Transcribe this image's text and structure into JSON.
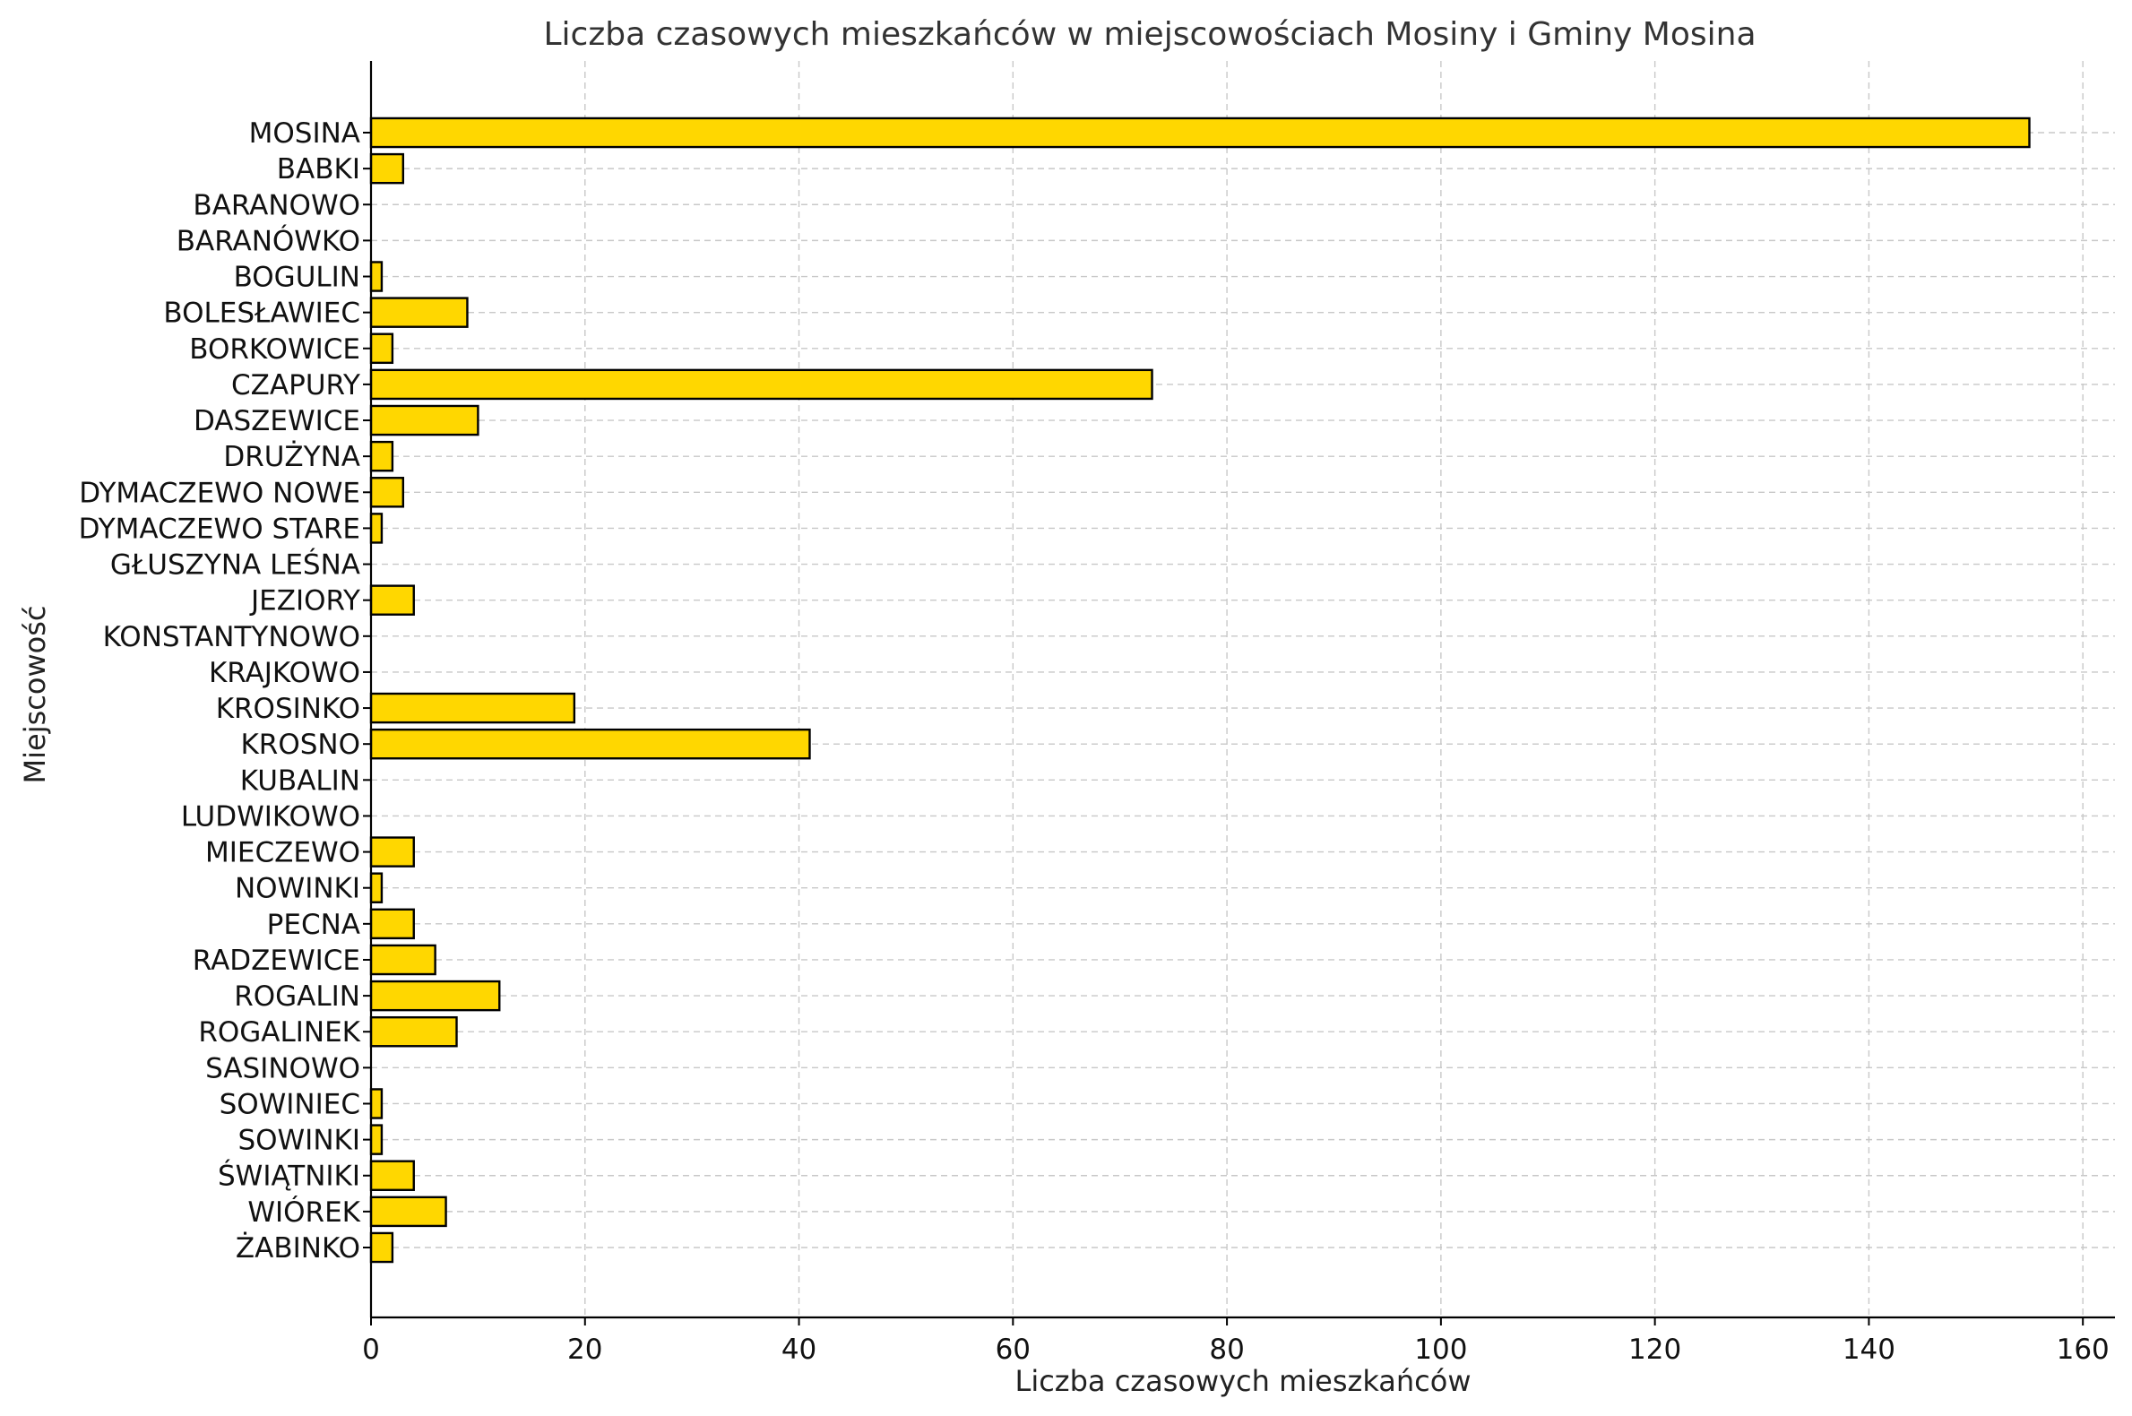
{
  "chart_data": {
    "type": "bar",
    "orientation": "horizontal",
    "title": "Liczba czasowych mieszkańców w miejscowościach Mosiny i Gminy Mosina",
    "xlabel": "Liczba czasowych mieszkańców",
    "ylabel": "Miejscowość",
    "xlim": [
      0,
      163
    ],
    "xticks": [
      0,
      20,
      40,
      60,
      80,
      100,
      120,
      140,
      160
    ],
    "grid": true,
    "bar_color": "#FFD700",
    "bar_edge_color": "#000000",
    "categories": [
      "MOSINA",
      "BABKI",
      "BARANOWO",
      "BARANÓWKO",
      "BOGULIN",
      "BOLESŁAWIEC",
      "BORKOWICE",
      "CZAPURY",
      "DASZEWICE",
      "DRUŻYNA",
      "DYMACZEWO NOWE",
      "DYMACZEWO STARE",
      "GŁUSZYNA LEŚNA",
      "JEZIORY",
      "KONSTANTYNOWO",
      "KRAJKOWO",
      "KROSINKO",
      "KROSNO",
      "KUBALIN",
      "LUDWIKOWO",
      "MIECZEWO",
      "NOWINKI",
      "PECNA",
      "RADZEWICE",
      "ROGALIN",
      "ROGALINEK",
      "SASINOWO",
      "SOWINIEC",
      "SOWINKI",
      "ŚWIĄTNIKI",
      "WIÓREK",
      "ŻABINKO"
    ],
    "values": [
      155,
      3,
      0,
      0,
      1,
      9,
      2,
      73,
      10,
      2,
      3,
      1,
      0,
      4,
      0,
      0,
      19,
      41,
      0,
      0,
      4,
      1,
      4,
      6,
      12,
      8,
      0,
      1,
      1,
      4,
      7,
      2
    ]
  }
}
